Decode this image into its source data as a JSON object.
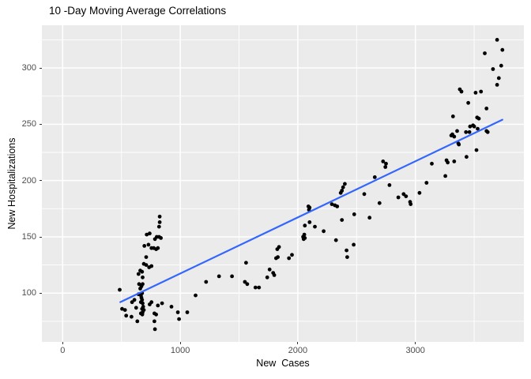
{
  "chart_data": {
    "type": "scatter",
    "title": "10 -Day Moving Average Correlations",
    "xlabel": "New  Cases",
    "ylabel": "New Hospitalizations",
    "x_ticks": [
      0,
      1000,
      2000,
      3000
    ],
    "x_minor_ticks": [
      500,
      1500,
      2500,
      3500
    ],
    "y_ticks": [
      100,
      150,
      200,
      250,
      300
    ],
    "y_minor_ticks": [
      75,
      125,
      175,
      225,
      275,
      325
    ],
    "xlim": [
      -177,
      3923
    ],
    "ylim": [
      56.7,
      337.9
    ],
    "grid": true,
    "legend": "none",
    "panel_bg": "#EBEBEB",
    "grid_color": "#FFFFFF",
    "point_color": "#000000",
    "trend_line": {
      "type": "linear",
      "color": "#3366FF",
      "x1": 490,
      "y1": 92,
      "x2": 3740,
      "y2": 254
    },
    "points": [
      [
        485,
        103
      ],
      [
        505,
        86
      ],
      [
        530,
        85
      ],
      [
        540,
        80
      ],
      [
        585,
        79
      ],
      [
        590,
        92
      ],
      [
        610,
        94
      ],
      [
        625,
        87
      ],
      [
        635,
        75
      ],
      [
        645,
        99
      ],
      [
        645,
        117
      ],
      [
        650,
        108
      ],
      [
        660,
        104
      ],
      [
        660,
        120
      ],
      [
        665,
        98
      ],
      [
        670,
        106
      ],
      [
        675,
        100
      ],
      [
        675,
        119
      ],
      [
        680,
        108
      ],
      [
        680,
        114
      ],
      [
        690,
        126
      ],
      [
        695,
        142
      ],
      [
        710,
        125
      ],
      [
        710,
        132
      ],
      [
        715,
        152
      ],
      [
        730,
        143
      ],
      [
        735,
        123
      ],
      [
        740,
        153
      ],
      [
        755,
        124
      ],
      [
        755,
        140
      ],
      [
        775,
        140
      ],
      [
        785,
        148
      ],
      [
        795,
        139
      ],
      [
        800,
        150
      ],
      [
        810,
        140
      ],
      [
        820,
        150
      ],
      [
        820,
        159
      ],
      [
        825,
        163
      ],
      [
        825,
        168
      ],
      [
        835,
        149
      ],
      [
        665,
        92
      ],
      [
        670,
        96
      ],
      [
        675,
        94
      ],
      [
        680,
        91
      ],
      [
        685,
        88
      ],
      [
        675,
        86
      ],
      [
        690,
        85
      ],
      [
        680,
        83
      ],
      [
        665,
        82
      ],
      [
        677,
        81
      ],
      [
        740,
        90
      ],
      [
        755,
        92
      ],
      [
        780,
        82
      ],
      [
        780,
        75
      ],
      [
        785,
        68
      ],
      [
        795,
        81
      ],
      [
        810,
        89
      ],
      [
        845,
        91
      ],
      [
        925,
        88
      ],
      [
        980,
        83
      ],
      [
        990,
        77
      ],
      [
        1060,
        83
      ],
      [
        1130,
        98
      ],
      [
        1220,
        110
      ],
      [
        1330,
        115
      ],
      [
        1440,
        115
      ],
      [
        1550,
        110
      ],
      [
        1560,
        127
      ],
      [
        1570,
        108
      ],
      [
        1640,
        105
      ],
      [
        1670,
        105
      ],
      [
        1740,
        114
      ],
      [
        1760,
        121
      ],
      [
        1790,
        118
      ],
      [
        1800,
        116
      ],
      [
        1815,
        131
      ],
      [
        1825,
        139
      ],
      [
        1830,
        132
      ],
      [
        1840,
        141
      ],
      [
        1925,
        131
      ],
      [
        1950,
        134
      ],
      [
        2045,
        150
      ],
      [
        2050,
        148
      ],
      [
        2055,
        152
      ],
      [
        2060,
        149
      ],
      [
        2060,
        160
      ],
      [
        2090,
        177
      ],
      [
        2095,
        174
      ],
      [
        2100,
        163
      ],
      [
        2100,
        176
      ],
      [
        2145,
        159
      ],
      [
        2220,
        155
      ],
      [
        2290,
        179
      ],
      [
        2315,
        178
      ],
      [
        2325,
        147
      ],
      [
        2335,
        177
      ],
      [
        2365,
        189
      ],
      [
        2375,
        165
      ],
      [
        2375,
        191
      ],
      [
        2385,
        194
      ],
      [
        2400,
        197
      ],
      [
        2415,
        138
      ],
      [
        2420,
        132
      ],
      [
        2475,
        143
      ],
      [
        2480,
        170
      ],
      [
        2565,
        188
      ],
      [
        2610,
        167
      ],
      [
        2655,
        203
      ],
      [
        2695,
        180
      ],
      [
        2725,
        217
      ],
      [
        2745,
        212
      ],
      [
        2750,
        215
      ],
      [
        2780,
        196
      ],
      [
        2855,
        185
      ],
      [
        2900,
        188
      ],
      [
        2920,
        186
      ],
      [
        2955,
        181
      ],
      [
        2960,
        179
      ],
      [
        3035,
        189
      ],
      [
        3095,
        198
      ],
      [
        3140,
        215
      ],
      [
        3255,
        204
      ],
      [
        3265,
        218
      ],
      [
        3275,
        216
      ],
      [
        3305,
        240
      ],
      [
        3315,
        241
      ],
      [
        3320,
        257
      ],
      [
        3330,
        217
      ],
      [
        3330,
        239
      ],
      [
        3355,
        244
      ],
      [
        3365,
        233
      ],
      [
        3370,
        232
      ],
      [
        3378,
        281
      ],
      [
        3392,
        279
      ],
      [
        3430,
        243
      ],
      [
        3435,
        221
      ],
      [
        3450,
        269
      ],
      [
        3460,
        243
      ],
      [
        3465,
        248
      ],
      [
        3490,
        249
      ],
      [
        3500,
        248
      ],
      [
        3512,
        278
      ],
      [
        3520,
        227
      ],
      [
        3525,
        256
      ],
      [
        3530,
        246
      ],
      [
        3540,
        255
      ],
      [
        3558,
        279
      ],
      [
        3590,
        313
      ],
      [
        3605,
        244
      ],
      [
        3605,
        264
      ],
      [
        3615,
        243
      ],
      [
        3660,
        299
      ],
      [
        3695,
        285
      ],
      [
        3695,
        325
      ],
      [
        3710,
        291
      ],
      [
        3730,
        302
      ],
      [
        3740,
        316
      ]
    ]
  }
}
